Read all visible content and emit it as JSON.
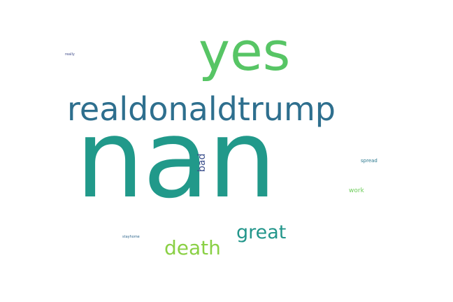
{
  "words": [
    {
      "text": "nan",
      "color": "#21998a"
    },
    {
      "text": "yes",
      "color": "#57c565"
    },
    {
      "text": "realdonaldtrump",
      "color": "#2e6f8e"
    },
    {
      "text": "great",
      "color": "#23968b"
    },
    {
      "text": "death",
      "color": "#8ad045"
    },
    {
      "text": "bad",
      "color": "#3b4f8c"
    },
    {
      "text": "spread",
      "color": "#2a788e"
    },
    {
      "text": "work",
      "color": "#6dcc5a"
    },
    {
      "text": "really",
      "color": "#3e4a89"
    },
    {
      "text": "stayhome",
      "color": "#31688e"
    }
  ]
}
